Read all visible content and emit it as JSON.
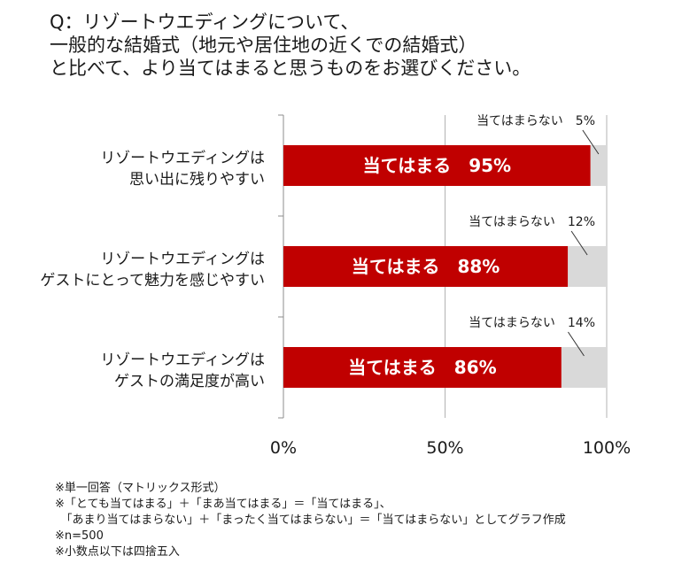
{
  "question": {
    "lines": [
      "Q：リゾートウエディングについて、",
      "一般的な結婚式（地元や居住地の近くでの結婚式）",
      "と比べて、より当てはまると思うものをお選びください。"
    ]
  },
  "chart_data": {
    "type": "bar",
    "orientation": "horizontal",
    "stacked": true,
    "categories": [
      [
        "リゾートウエディングは",
        "思い出に残りやすい"
      ],
      [
        "リゾートウエディングは",
        "ゲストにとって魅力を感じやすい"
      ],
      [
        "リゾートウエディングは",
        "ゲストの満足度が高い"
      ]
    ],
    "series": [
      {
        "name": "当てはまる",
        "values": [
          95,
          88,
          86
        ],
        "color": "#c00000",
        "label_color": "#ffffff"
      },
      {
        "name": "当てはまらない",
        "values": [
          5,
          12,
          14
        ],
        "color": "#d9d9d9"
      }
    ],
    "bar_labels": [
      "当てはまる　95%",
      "当てはまる　88%",
      "当てはまる　86%"
    ],
    "callouts": [
      "当てはまらない　5%",
      "当てはまらない　12%",
      "当てはまらない　14%"
    ],
    "xlim": [
      0,
      100
    ],
    "xticks": [
      0,
      50,
      100
    ],
    "xtick_labels": [
      "0%",
      "50%",
      "100%"
    ],
    "grid": true,
    "legend": "none"
  },
  "notes": [
    "※単一回答（マトリックス形式）",
    "※「とても当てはまる」＋「まあ当てはまる」＝「当てはまる」、",
    "　「あまり当てはまらない」＋「まったく当てはまらない」＝「当てはまらない」としてグラフ作成",
    "※n=500",
    "※小数点以下は四捨五入"
  ]
}
